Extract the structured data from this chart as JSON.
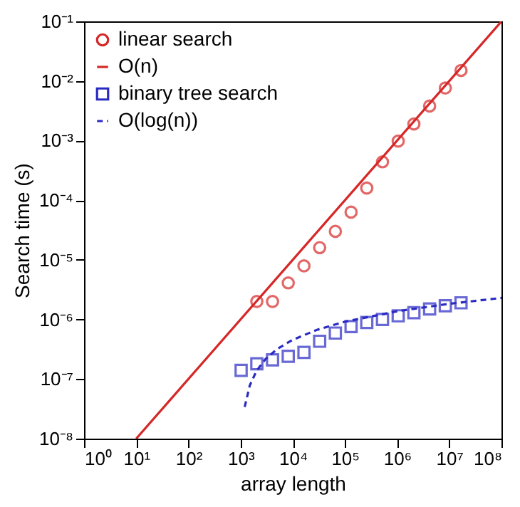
{
  "chart_data": {
    "type": "scatter",
    "xlabel": "array length",
    "ylabel": "Search time (s)",
    "log": "xy",
    "grid": false,
    "legend": "top left",
    "xlim": [
      1,
      100000000
    ],
    "ylim": [
      1e-08,
      0.1
    ],
    "xticks": [
      {
        "value": 1,
        "label": "10⁰"
      },
      {
        "value": 10,
        "label": "10¹"
      },
      {
        "value": 100,
        "label": "10²"
      },
      {
        "value": 1000,
        "label": "10³"
      },
      {
        "value": 10000,
        "label": "10⁴"
      },
      {
        "value": 100000,
        "label": "10⁵"
      },
      {
        "value": 1000000,
        "label": "10⁶"
      },
      {
        "value": 10000000,
        "label": "10⁷"
      },
      {
        "value": 100000000,
        "label": "10⁸"
      }
    ],
    "yticks": [
      {
        "value": 1e-08,
        "label": "10⁻⁸"
      },
      {
        "value": 1e-07,
        "label": "10⁻⁷"
      },
      {
        "value": 1e-06,
        "label": "10⁻⁶"
      },
      {
        "value": 1e-05,
        "label": "10⁻⁵"
      },
      {
        "value": 0.0001,
        "label": "10⁻⁴"
      },
      {
        "value": 0.001,
        "label": "10⁻³"
      },
      {
        "value": 0.01,
        "label": "10⁻²"
      },
      {
        "value": 0.1,
        "label": "10⁻¹"
      }
    ],
    "series": [
      {
        "name": "linear search",
        "type": "scatter",
        "marker": "circle",
        "color": "#d62728",
        "x": [
          2048,
          4096,
          8192,
          16384,
          32768,
          65536,
          131072,
          262144,
          524288,
          1048576,
          2097152,
          4194304,
          8388608,
          16777216
        ],
        "values": [
          2e-06,
          2e-06,
          4.1e-06,
          7.9e-06,
          1.6e-05,
          3e-05,
          6.3e-05,
          0.00016,
          0.00044,
          0.00098,
          0.0019,
          0.0038,
          0.0076,
          0.015
        ]
      },
      {
        "name": "O(n)",
        "type": "line",
        "marker": "none",
        "line_style": "solid",
        "color": "#d62728",
        "x": [
          10,
          100000000
        ],
        "values": [
          1e-08,
          0.1
        ]
      },
      {
        "name": "binary tree search",
        "type": "scatter",
        "marker": "square",
        "color": "#2b2bc4",
        "x": [
          1024,
          2048,
          4096,
          8192,
          16384,
          32768,
          65536,
          131072,
          262144,
          524288,
          1048576,
          2097152,
          4194304,
          8388608,
          16777216
        ],
        "values": [
          1.4e-07,
          1.8e-07,
          2.1e-07,
          2.4e-07,
          2.8e-07,
          4.3e-07,
          5.9e-07,
          7.6e-07,
          8.9e-07,
          1e-06,
          1.15e-06,
          1.3e-06,
          1.5e-06,
          1.7e-06,
          1.9e-06
        ]
      },
      {
        "name": "O(log(n))",
        "type": "line",
        "marker": "none",
        "line_style": "dashed",
        "color": "#2b2bc4",
        "x": [
          1200,
          1500,
          2000,
          3000,
          5000,
          10000,
          30000,
          100000,
          1000000,
          10000000,
          100000000
        ],
        "values": [
          3.4e-08,
          7.8e-08,
          1.35e-07,
          2.16e-07,
          3.18e-07,
          4.56e-07,
          6.75e-07,
          9.15e-07,
          1.37e-06,
          1.83e-06,
          2.29e-06
        ]
      }
    ]
  }
}
